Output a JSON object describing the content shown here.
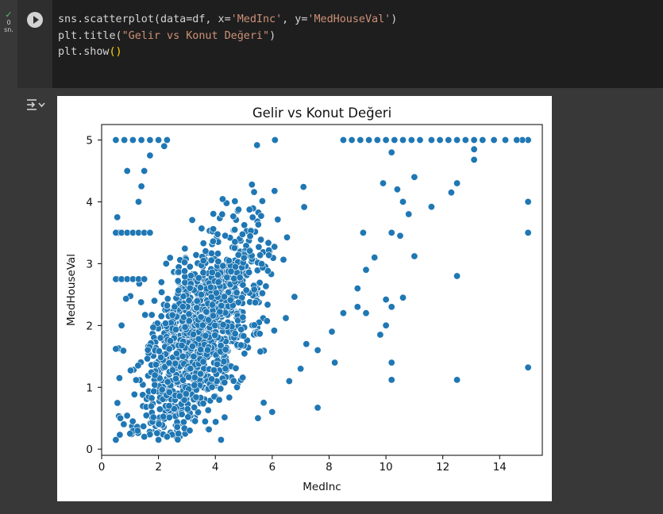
{
  "cell": {
    "exec_count": "0",
    "exec_unit": "sn.",
    "code_lines": [
      [
        {
          "t": "sns.scatterplot(data=df, x=",
          "c": ""
        },
        {
          "t": "'MedInc'",
          "c": "s"
        },
        {
          "t": ", y=",
          "c": ""
        },
        {
          "t": "'MedHouseVal'",
          "c": "s"
        },
        {
          "t": ")",
          "c": ""
        }
      ],
      [
        {
          "t": "plt.title(",
          "c": ""
        },
        {
          "t": "\"Gelir vs Konut Değeri\"",
          "c": "s"
        },
        {
          "t": ")",
          "c": ""
        }
      ],
      [
        {
          "t": "plt.show",
          "c": ""
        },
        {
          "t": "()",
          "c": "p"
        }
      ]
    ]
  },
  "chart_data": {
    "type": "scatter",
    "title": "Gelir vs Konut Değeri",
    "xlabel": "MedInc",
    "ylabel": "MedHouseVal",
    "xlim": [
      0.0,
      15.5
    ],
    "ylim": [
      -0.1,
      5.25
    ],
    "xticks": [
      0,
      2,
      4,
      6,
      8,
      10,
      12,
      14
    ],
    "yticks": [
      0,
      1,
      2,
      3,
      4,
      5
    ],
    "grid": false,
    "marker_color": "#1f77b4",
    "points": [
      [
        0.5,
        0.15
      ],
      [
        1.0,
        0.25
      ],
      [
        1.5,
        0.2
      ],
      [
        2.0,
        0.15
      ],
      [
        2.3,
        0.2
      ],
      [
        2.7,
        0.25
      ],
      [
        3.1,
        0.3
      ],
      [
        4.2,
        0.15
      ],
      [
        0.5,
        1.62
      ],
      [
        0.55,
        2.75
      ],
      [
        0.6,
        3.5
      ],
      [
        0.55,
        3.75
      ],
      [
        0.7,
        2.0
      ],
      [
        1.1,
        3.5
      ],
      [
        1.3,
        4.0
      ],
      [
        1.5,
        4.5
      ],
      [
        1.4,
        4.25
      ],
      [
        0.9,
        4.5
      ],
      [
        1.7,
        4.75
      ],
      [
        2.2,
        4.9
      ],
      [
        5.5,
        0.5
      ],
      [
        5.7,
        0.75
      ],
      [
        6.0,
        0.6
      ],
      [
        7.6,
        0.67
      ],
      [
        6.6,
        1.1
      ],
      [
        7.0,
        1.3
      ],
      [
        7.6,
        1.6
      ],
      [
        8.2,
        1.4
      ],
      [
        8.5,
        2.2
      ],
      [
        9.0,
        2.3
      ],
      [
        9.3,
        2.2
      ],
      [
        8.1,
        1.9
      ],
      [
        7.2,
        1.7
      ],
      [
        9.0,
        2.6
      ],
      [
        9.3,
        2.9
      ],
      [
        9.6,
        3.1
      ],
      [
        9.2,
        3.5
      ],
      [
        10.2,
        3.5
      ],
      [
        10.5,
        3.45
      ],
      [
        9.9,
        4.3
      ],
      [
        10.4,
        4.2
      ],
      [
        10.6,
        4.0
      ],
      [
        11.0,
        4.4
      ],
      [
        10.2,
        4.8
      ],
      [
        10.8,
        3.8
      ],
      [
        11.6,
        3.92
      ],
      [
        12.3,
        4.15
      ],
      [
        12.5,
        4.3
      ],
      [
        13.1,
        4.68
      ],
      [
        13.1,
        4.85
      ],
      [
        12.5,
        2.8
      ],
      [
        11.0,
        3.12
      ],
      [
        9.8,
        1.85
      ],
      [
        10.0,
        2.0
      ],
      [
        10.0,
        2.42
      ],
      [
        10.2,
        2.3
      ],
      [
        10.6,
        2.45
      ],
      [
        10.2,
        1.4
      ],
      [
        10.2,
        1.12
      ],
      [
        12.5,
        1.12
      ],
      [
        15.0,
        1.32
      ],
      [
        15.0,
        3.5
      ],
      [
        15.0,
        4.0
      ],
      [
        15.0,
        5.0
      ],
      [
        14.8,
        5.0
      ],
      [
        14.6,
        5.0
      ],
      [
        14.2,
        5.0
      ],
      [
        13.8,
        5.0
      ],
      [
        13.4,
        5.0
      ],
      [
        13.1,
        5.0
      ],
      [
        12.8,
        5.0
      ],
      [
        12.5,
        5.0
      ],
      [
        12.2,
        5.0
      ],
      [
        11.9,
        5.0
      ],
      [
        11.6,
        5.0
      ],
      [
        11.2,
        5.0
      ],
      [
        10.9,
        5.0
      ],
      [
        10.6,
        5.0
      ],
      [
        10.3,
        5.0
      ],
      [
        10.0,
        5.0
      ],
      [
        9.7,
        5.0
      ],
      [
        9.4,
        5.0
      ],
      [
        9.1,
        5.0
      ],
      [
        8.8,
        5.0
      ],
      [
        8.5,
        5.0
      ],
      [
        0.5,
        5.0
      ],
      [
        0.8,
        5.0
      ],
      [
        1.1,
        5.0
      ],
      [
        1.4,
        5.0
      ],
      [
        1.7,
        5.0
      ],
      [
        2.0,
        5.0
      ],
      [
        2.3,
        5.0
      ],
      [
        0.5,
        3.5
      ],
      [
        0.7,
        3.5
      ],
      [
        0.9,
        3.5
      ],
      [
        1.1,
        3.5
      ],
      [
        1.3,
        3.5
      ],
      [
        1.5,
        3.5
      ],
      [
        1.7,
        3.5
      ],
      [
        0.5,
        2.75
      ],
      [
        0.7,
        2.75
      ],
      [
        0.9,
        2.75
      ],
      [
        1.1,
        2.75
      ],
      [
        1.3,
        2.75
      ],
      [
        1.5,
        2.75
      ]
    ],
    "cloud_seed": 7,
    "cloud_count": 3800
  }
}
